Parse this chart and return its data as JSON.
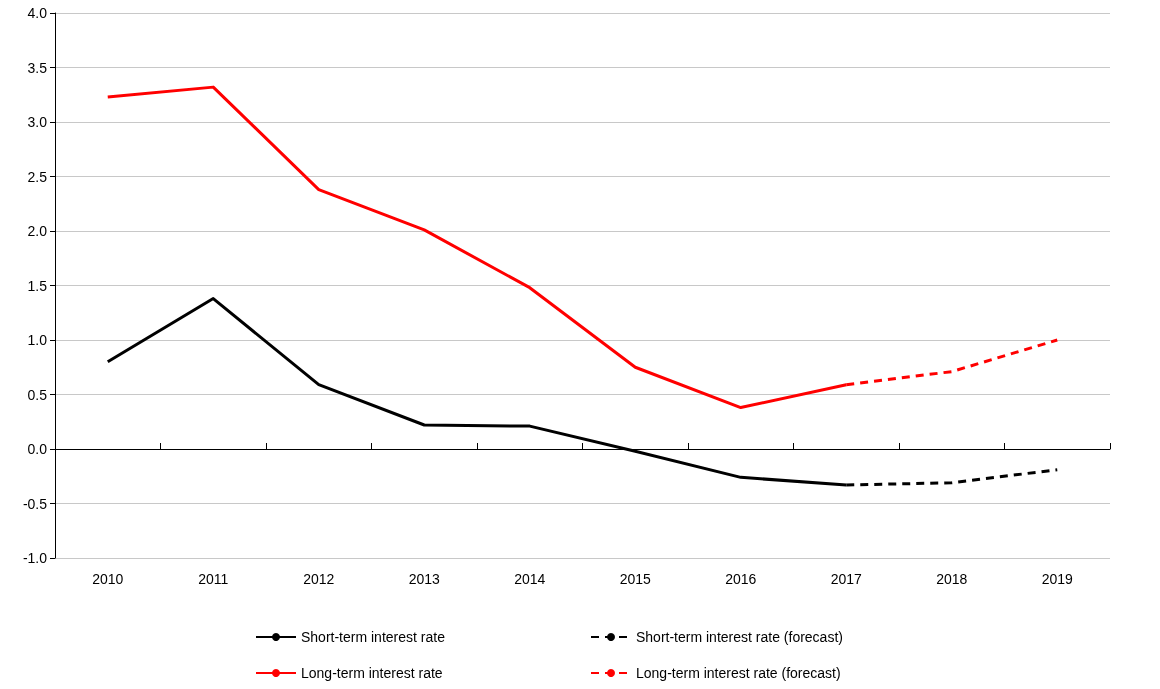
{
  "chart_data": {
    "type": "line",
    "categories": [
      "2010",
      "2011",
      "2012",
      "2013",
      "2014",
      "2015",
      "2016",
      "2017",
      "2018",
      "2019"
    ],
    "series": [
      {
        "name": "Short-term interest rate",
        "color": "#000000",
        "line_style": "solid",
        "values": [
          0.8,
          1.38,
          0.59,
          0.22,
          0.21,
          -0.02,
          -0.26,
          -0.33,
          null,
          null
        ]
      },
      {
        "name": "Short-term interest rate (forecast)",
        "color": "#000000",
        "line_style": "dashed",
        "values": [
          null,
          null,
          null,
          null,
          null,
          null,
          null,
          -0.33,
          -0.31,
          -0.19
        ]
      },
      {
        "name": "Long-term interest rate",
        "color": "#ff0000",
        "line_style": "solid",
        "values": [
          3.23,
          3.32,
          2.38,
          2.01,
          1.48,
          0.75,
          0.38,
          0.59,
          null,
          null
        ]
      },
      {
        "name": "Long-term interest rate (forecast)",
        "color": "#ff0000",
        "line_style": "dashed",
        "values": [
          null,
          null,
          null,
          null,
          null,
          null,
          null,
          0.59,
          0.71,
          1.0
        ]
      }
    ],
    "ylim": [
      -1,
      4
    ],
    "yticks": [
      {
        "value": -1,
        "label": "-1.0"
      },
      {
        "value": -0.5,
        "label": "-0.5"
      },
      {
        "value": 0,
        "label": "0.0"
      },
      {
        "value": 0.5,
        "label": "0.5"
      },
      {
        "value": 1,
        "label": "1.0"
      },
      {
        "value": 1.5,
        "label": "1.5"
      },
      {
        "value": 2,
        "label": "2.0"
      },
      {
        "value": 2.5,
        "label": "2.5"
      },
      {
        "value": 3,
        "label": "3.0"
      },
      {
        "value": 3.5,
        "label": "3.5"
      },
      {
        "value": 4,
        "label": "4.0"
      }
    ],
    "grid": "y",
    "legend": "bottom",
    "marker": "none"
  }
}
